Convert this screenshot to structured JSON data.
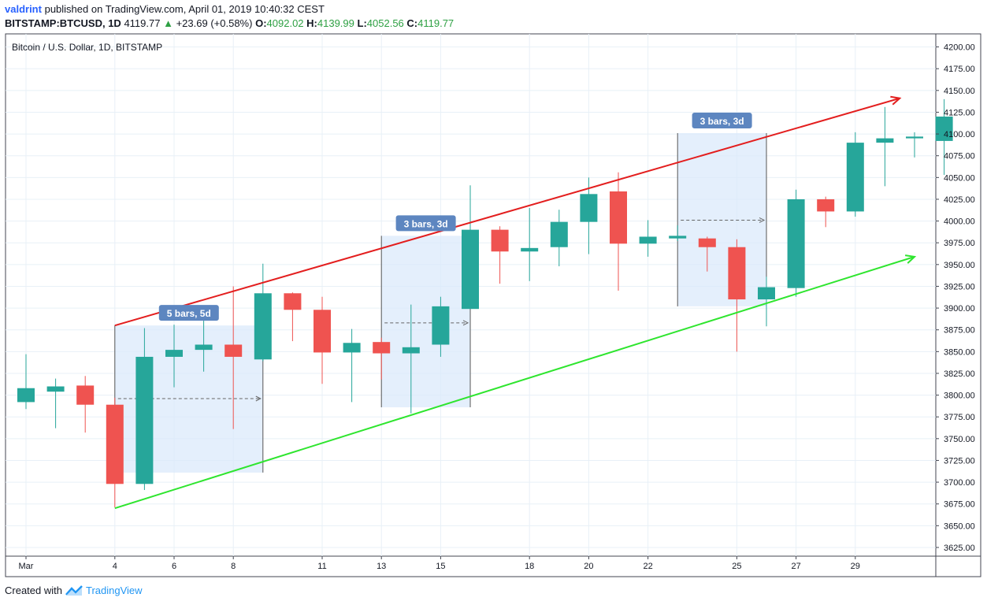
{
  "header": {
    "author": "valdrint",
    "published": "published on TradingView.com, April 01, 2019 10:40:32 CEST",
    "symbol": "BITSTAMP:BTCUSD, 1D",
    "last": "4119.77",
    "change": "+23.69 (+0.58%)",
    "o_label": "O:",
    "o": "4092.02",
    "h_label": "H:",
    "h": "4139.99",
    "l_label": "L:",
    "l": "4052.56",
    "c_label": "C:",
    "c": "4119.77"
  },
  "footer": {
    "created_with": "Created with",
    "brand": "TradingView"
  },
  "chart_data": {
    "type": "candlestick",
    "title": "Bitcoin / U.S. Dollar, 1D, BITSTAMP",
    "ylim": [
      3615,
      4215
    ],
    "y_ticks": [
      3625,
      3650,
      3675,
      3700,
      3725,
      3750,
      3775,
      3800,
      3825,
      3850,
      3875,
      3900,
      3925,
      3950,
      3975,
      4000,
      4025,
      4050,
      4075,
      4100,
      4125,
      4150,
      4175,
      4200
    ],
    "x_ticks": [
      {
        "day": 1,
        "label": "Mar"
      },
      {
        "day": 4,
        "label": "4"
      },
      {
        "day": 6,
        "label": "6"
      },
      {
        "day": 8,
        "label": "8"
      },
      {
        "day": 11,
        "label": "11"
      },
      {
        "day": 13,
        "label": "13"
      },
      {
        "day": 15,
        "label": "15"
      },
      {
        "day": 18,
        "label": "18"
      },
      {
        "day": 20,
        "label": "20"
      },
      {
        "day": 22,
        "label": "22"
      },
      {
        "day": 25,
        "label": "25"
      },
      {
        "day": 27,
        "label": "27"
      },
      {
        "day": 29,
        "label": "29"
      }
    ],
    "candles": [
      {
        "day": 1,
        "o": 3792,
        "h": 3847,
        "l": 3784,
        "c": 3808
      },
      {
        "day": 2,
        "o": 3804,
        "h": 3819,
        "l": 3762,
        "c": 3810
      },
      {
        "day": 3,
        "o": 3811,
        "h": 3822,
        "l": 3757,
        "c": 3789
      },
      {
        "day": 4,
        "o": 3789,
        "h": 3797,
        "l": 3671,
        "c": 3698
      },
      {
        "day": 5,
        "o": 3698,
        "h": 3877,
        "l": 3691,
        "c": 3844
      },
      {
        "day": 6,
        "o": 3844,
        "h": 3881,
        "l": 3809,
        "c": 3852
      },
      {
        "day": 7,
        "o": 3852,
        "h": 3891,
        "l": 3827,
        "c": 3858
      },
      {
        "day": 8,
        "o": 3858,
        "h": 3925,
        "l": 3761,
        "c": 3844
      },
      {
        "day": 9,
        "o": 3841,
        "h": 3951,
        "l": 3839,
        "c": 3917
      },
      {
        "day": 10,
        "o": 3917,
        "h": 3918,
        "l": 3862,
        "c": 3898
      },
      {
        "day": 11,
        "o": 3898,
        "h": 3913,
        "l": 3813,
        "c": 3849
      },
      {
        "day": 12,
        "o": 3849,
        "h": 3876,
        "l": 3792,
        "c": 3860
      },
      {
        "day": 13,
        "o": 3861,
        "h": 3866,
        "l": 3818,
        "c": 3848
      },
      {
        "day": 14,
        "o": 3848,
        "h": 3904,
        "l": 3779,
        "c": 3855
      },
      {
        "day": 15,
        "o": 3858,
        "h": 3913,
        "l": 3844,
        "c": 3902
      },
      {
        "day": 16,
        "o": 3899,
        "h": 4041,
        "l": 3899,
        "c": 3990
      },
      {
        "day": 17,
        "o": 3990,
        "h": 3994,
        "l": 3928,
        "c": 3965
      },
      {
        "day": 18,
        "o": 3965,
        "h": 4015,
        "l": 3931,
        "c": 3969
      },
      {
        "day": 19,
        "o": 3970,
        "h": 4013,
        "l": 3948,
        "c": 3999
      },
      {
        "day": 20,
        "o": 3999,
        "h": 4050,
        "l": 3962,
        "c": 4031
      },
      {
        "day": 21,
        "o": 4034,
        "h": 4056,
        "l": 3920,
        "c": 3974
      },
      {
        "day": 22,
        "o": 3974,
        "h": 4001,
        "l": 3959,
        "c": 3982
      },
      {
        "day": 23,
        "o": 3980,
        "h": 3995,
        "l": 3977,
        "c": 3983
      },
      {
        "day": 24,
        "o": 3980,
        "h": 3982,
        "l": 3942,
        "c": 3970
      },
      {
        "day": 25,
        "o": 3970,
        "h": 3979,
        "l": 3850,
        "c": 3910
      },
      {
        "day": 26,
        "o": 3910,
        "h": 3936,
        "l": 3879,
        "c": 3924
      },
      {
        "day": 27,
        "o": 3923,
        "h": 4036,
        "l": 3913,
        "c": 4025
      },
      {
        "day": 28,
        "o": 4025,
        "h": 4028,
        "l": 3993,
        "c": 4011
      },
      {
        "day": 29,
        "o": 4011,
        "h": 4102,
        "l": 4005,
        "c": 4090
      },
      {
        "day": 30,
        "o": 4090,
        "h": 4131,
        "l": 4040,
        "c": 4095
      },
      {
        "day": 31,
        "o": 4095,
        "h": 4102,
        "l": 4073,
        "c": 4097
      },
      {
        "day": 32,
        "o": 4092,
        "h": 4140,
        "l": 4053,
        "c": 4120
      }
    ],
    "trendlines": [
      {
        "name": "resistance",
        "color": "#e31e1e",
        "from": {
          "day": 4,
          "price": 3880
        },
        "to": {
          "day": 30.5,
          "price": 4141
        }
      },
      {
        "name": "support",
        "color": "#2ee52e",
        "from": {
          "day": 4,
          "price": 3670
        },
        "to": {
          "day": 31,
          "price": 3959
        }
      }
    ],
    "range_boxes": [
      {
        "label": "5 bars, 5d",
        "from_day": 4,
        "to_day": 9,
        "top": 3880,
        "bottom": 3711,
        "mid": 3796
      },
      {
        "label": "3 bars, 3d",
        "from_day": 13,
        "to_day": 16,
        "top": 3983,
        "bottom": 3786,
        "mid": 3883
      },
      {
        "label": "3 bars, 3d",
        "from_day": 23,
        "to_day": 26,
        "top": 4101,
        "bottom": 3902,
        "mid": 4001
      }
    ],
    "colors": {
      "up": "#26a69a",
      "down": "#ef5350",
      "grid": "#e8f0f7",
      "box": "#dbeafb",
      "label_bg": "#5d86c0"
    }
  }
}
